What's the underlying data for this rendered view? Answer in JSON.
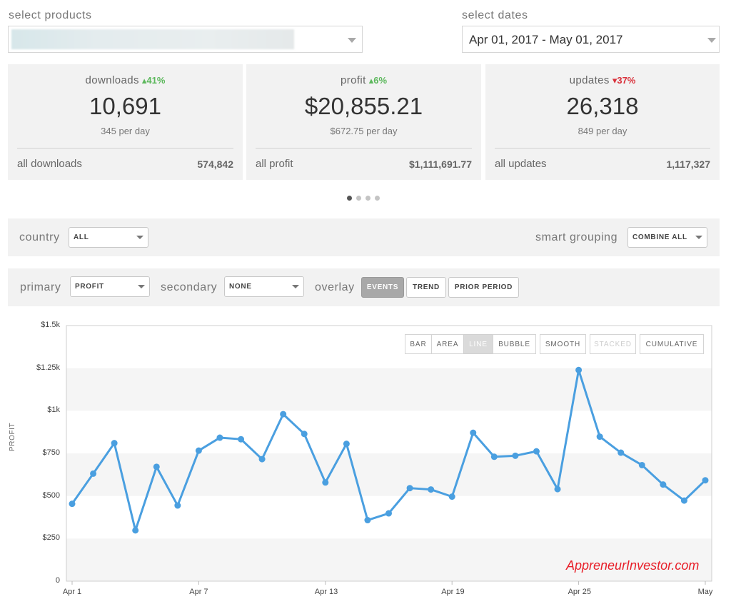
{
  "filters": {
    "products_label": "select products",
    "dates_label": "select dates",
    "dates_value": "Apr 01, 2017 - May 01, 2017"
  },
  "cards": [
    {
      "title": "downloads",
      "delta": "41%",
      "delta_dir": "up",
      "value": "10,691",
      "per_day": "345 per day",
      "all_label": "all downloads",
      "all_value": "574,842"
    },
    {
      "title": "profit",
      "delta": "6%",
      "delta_dir": "up",
      "value": "$20,855.21",
      "per_day": "$672.75 per day",
      "all_label": "all profit",
      "all_value": "$1,111,691.77"
    },
    {
      "title": "updates",
      "delta": "37%",
      "delta_dir": "down",
      "value": "26,318",
      "per_day": "849 per day",
      "all_label": "all updates",
      "all_value": "1,117,327"
    }
  ],
  "pager": {
    "count": 4,
    "active": 0
  },
  "controls": {
    "country_label": "country",
    "country_value": "ALL",
    "grouping_label": "smart grouping",
    "grouping_value": "COMBINE ALL",
    "primary_label": "primary",
    "primary_value": "PROFIT",
    "secondary_label": "secondary",
    "secondary_value": "NONE",
    "overlay_label": "overlay",
    "overlay_buttons": [
      {
        "label": "EVENTS",
        "active": true
      },
      {
        "label": "TREND",
        "active": false
      },
      {
        "label": "PRIOR PERIOD",
        "active": false
      }
    ]
  },
  "chart_types": [
    {
      "label": "BAR",
      "state": "normal"
    },
    {
      "label": "AREA",
      "state": "normal"
    },
    {
      "label": "LINE",
      "state": "active"
    },
    {
      "label": "BUBBLE",
      "state": "normal"
    },
    {
      "label": "SMOOTH",
      "state": "normal"
    },
    {
      "label": "STACKED",
      "state": "disabled"
    },
    {
      "label": "CUMULATIVE",
      "state": "normal"
    }
  ],
  "watermark": "AppreneurInvestor.com",
  "colors": {
    "line": "#4a9fe0",
    "up": "#5cb85c",
    "down": "#d9303a",
    "band": "#f5f5f5"
  },
  "chart_data": {
    "type": "line",
    "ylabel": "PROFIT",
    "ylim": [
      0,
      1500
    ],
    "yticks": [
      {
        "value": 0,
        "label": "0"
      },
      {
        "value": 250,
        "label": "$250"
      },
      {
        "value": 500,
        "label": "$500"
      },
      {
        "value": 750,
        "label": "$750"
      },
      {
        "value": 1000,
        "label": "$1k"
      },
      {
        "value": 1250,
        "label": "$1.25k"
      },
      {
        "value": 1500,
        "label": "$1.5k"
      }
    ],
    "x": [
      "Apr 1",
      "Apr 2",
      "Apr 3",
      "Apr 4",
      "Apr 5",
      "Apr 6",
      "Apr 7",
      "Apr 8",
      "Apr 9",
      "Apr 10",
      "Apr 11",
      "Apr 12",
      "Apr 13",
      "Apr 14",
      "Apr 15",
      "Apr 16",
      "Apr 17",
      "Apr 18",
      "Apr 19",
      "Apr 20",
      "Apr 21",
      "Apr 22",
      "Apr 23",
      "Apr 24",
      "Apr 25",
      "Apr 26",
      "Apr 27",
      "Apr 28",
      "Apr 29",
      "Apr 30",
      "May 1"
    ],
    "xticks": [
      "Apr 1",
      "Apr 7",
      "Apr 13",
      "Apr 19",
      "Apr 25",
      "May"
    ],
    "values": [
      454,
      631,
      810,
      298,
      671,
      444,
      766,
      842,
      833,
      716,
      980,
      864,
      579,
      806,
      358,
      398,
      546,
      538,
      496,
      871,
      730,
      736,
      762,
      540,
      1239,
      848,
      754,
      681,
      567,
      473,
      592
    ],
    "grid": "alternating bands"
  }
}
